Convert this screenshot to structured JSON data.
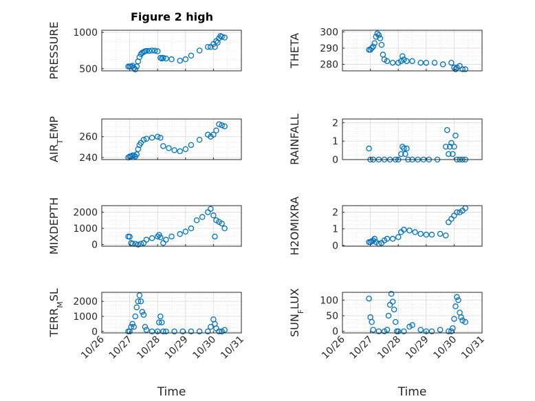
{
  "figure": {
    "title": "Figure 2 high",
    "marker_color": "#0072BD",
    "xlabel": "Time",
    "x_ticks": [
      "10/26",
      "10/27",
      "10/28",
      "10/29",
      "10/30",
      "10/31"
    ]
  },
  "chart_data": [
    {
      "type": "scatter",
      "title": "Figure 2 high",
      "ylabel": "PRESSURE",
      "yticks": [
        "500",
        "1000"
      ],
      "ylim": [
        470,
        1030
      ],
      "xlim": [
        0,
        5
      ],
      "grid": true,
      "x": [
        0.95,
        1.0,
        1.05,
        1.1,
        1.15,
        1.2,
        1.25,
        1.3,
        1.35,
        1.4,
        1.45,
        1.5,
        1.55,
        1.6,
        1.7,
        1.8,
        1.9,
        2.0,
        2.1,
        2.15,
        2.2,
        2.3,
        2.5,
        2.8,
        3.0,
        3.2,
        3.5,
        3.8,
        3.9,
        4.0,
        4.05,
        4.1,
        4.15,
        4.2,
        4.25,
        4.3,
        4.4
      ],
      "y": [
        530,
        530,
        530,
        540,
        510,
        490,
        530,
        600,
        660,
        700,
        720,
        730,
        740,
        745,
        745,
        750,
        748,
        740,
        650,
        640,
        650,
        640,
        630,
        610,
        630,
        680,
        750,
        800,
        800,
        840,
        800,
        880,
        860,
        920,
        950,
        940,
        930
      ]
    },
    {
      "type": "scatter",
      "ylabel": "THETA",
      "yticks": [
        "280",
        "290",
        "300"
      ],
      "ylim": [
        276,
        301
      ],
      "xlim": [
        0,
        5
      ],
      "grid": true,
      "x": [
        0.95,
        1.0,
        1.05,
        1.1,
        1.15,
        1.2,
        1.25,
        1.3,
        1.35,
        1.4,
        1.45,
        1.5,
        1.6,
        1.8,
        2.0,
        2.1,
        2.15,
        2.2,
        2.3,
        2.5,
        2.8,
        3.0,
        3.3,
        3.6,
        3.9,
        4.0,
        4.05,
        4.1,
        4.2,
        4.3,
        4.4
      ],
      "y": [
        289,
        289,
        290,
        291,
        293,
        297,
        299,
        298,
        296,
        292,
        286,
        283,
        282,
        281,
        281,
        282,
        285,
        283,
        282,
        282,
        281,
        281,
        281,
        280,
        281,
        278,
        277,
        278,
        279,
        277,
        277
      ]
    },
    {
      "type": "scatter",
      "ylabel": "AIR_TEMP",
      "yticks": [
        "240",
        "260"
      ],
      "ylim": [
        238,
        277
      ],
      "xlim": [
        0,
        5
      ],
      "grid": true,
      "x": [
        0.95,
        1.0,
        1.05,
        1.1,
        1.15,
        1.2,
        1.25,
        1.3,
        1.35,
        1.4,
        1.5,
        1.6,
        1.8,
        2.0,
        2.1,
        2.2,
        2.4,
        2.6,
        2.8,
        3.0,
        3.2,
        3.5,
        3.8,
        3.9,
        4.0,
        4.1,
        4.2,
        4.3,
        4.4
      ],
      "y": [
        240,
        241,
        241,
        242,
        242,
        241,
        243,
        248,
        252,
        254,
        257,
        258,
        259,
        260,
        259,
        251,
        249,
        247,
        246,
        248,
        252,
        257,
        262,
        260,
        262,
        266,
        272,
        271,
        270
      ]
    },
    {
      "type": "scatter",
      "ylabel": "RAINFALL",
      "yticks": [
        "0",
        "1",
        "2"
      ],
      "ylim": [
        0,
        2.2
      ],
      "xlim": [
        0,
        5
      ],
      "grid": true,
      "x": [
        0.95,
        1.0,
        1.1,
        1.3,
        1.5,
        1.7,
        1.9,
        2.0,
        2.1,
        2.15,
        2.2,
        2.25,
        2.3,
        2.35,
        2.5,
        2.7,
        2.9,
        3.1,
        3.4,
        3.7,
        3.75,
        3.8,
        3.85,
        3.9,
        3.95,
        4.0,
        4.05,
        4.1,
        4.2,
        4.3,
        4.4
      ],
      "y": [
        0.6,
        0,
        0,
        0,
        0,
        0,
        0,
        0,
        0.3,
        0.7,
        0.6,
        0.3,
        0.6,
        0,
        0,
        0,
        0,
        0,
        0,
        0.7,
        1.6,
        0.3,
        0.7,
        0.9,
        0.3,
        0.7,
        1.3,
        0,
        0,
        0,
        0
      ]
    },
    {
      "type": "scatter",
      "ylabel": "MIXDEPTH",
      "yticks": [
        "0",
        "1000",
        "2000"
      ],
      "ylim": [
        -100,
        2400
      ],
      "xlim": [
        0,
        5
      ],
      "grid": true,
      "x": [
        0.95,
        1.0,
        1.05,
        1.1,
        1.2,
        1.3,
        1.4,
        1.5,
        1.6,
        1.8,
        2.0,
        2.05,
        2.1,
        2.2,
        2.3,
        2.5,
        2.8,
        3.0,
        3.2,
        3.4,
        3.6,
        3.8,
        3.9,
        4.0,
        4.05,
        4.1,
        4.2,
        4.3,
        4.4
      ],
      "y": [
        500,
        480,
        100,
        50,
        50,
        0,
        50,
        100,
        300,
        400,
        500,
        600,
        450,
        100,
        300,
        500,
        650,
        800,
        1000,
        1500,
        1700,
        2000,
        2200,
        1800,
        500,
        1500,
        1400,
        1300,
        1000
      ]
    },
    {
      "type": "scatter",
      "ylabel": "H2OMIXRA",
      "yticks": [
        "0",
        "1",
        "2"
      ],
      "ylim": [
        -0.05,
        2.4
      ],
      "xlim": [
        0,
        5
      ],
      "grid": true,
      "x": [
        0.95,
        1.0,
        1.05,
        1.1,
        1.15,
        1.2,
        1.3,
        1.4,
        1.5,
        1.6,
        1.8,
        2.0,
        2.1,
        2.2,
        2.4,
        2.6,
        2.8,
        3.0,
        3.2,
        3.5,
        3.7,
        3.8,
        3.9,
        4.0,
        4.1,
        4.2,
        4.3,
        4.4
      ],
      "y": [
        0.2,
        0.2,
        0.25,
        0.3,
        0.4,
        0.2,
        0.1,
        0.15,
        0.3,
        0.4,
        0.4,
        0.5,
        0.8,
        0.95,
        0.9,
        0.8,
        0.7,
        0.65,
        0.65,
        0.7,
        0.6,
        1.4,
        1.6,
        1.8,
        2.0,
        2.0,
        2.1,
        2.25
      ]
    },
    {
      "type": "scatter",
      "ylabel": "TERR_MSL",
      "yticks": [
        "0",
        "1000",
        "2000"
      ],
      "ylim": [
        -100,
        2600
      ],
      "xlim": [
        0,
        5
      ],
      "grid": true,
      "x": [
        0.95,
        1.0,
        1.05,
        1.1,
        1.15,
        1.2,
        1.25,
        1.3,
        1.35,
        1.4,
        1.45,
        1.5,
        1.55,
        1.6,
        1.8,
        2.0,
        2.05,
        2.1,
        2.15,
        2.2,
        2.3,
        2.6,
        2.9,
        3.2,
        3.5,
        3.8,
        3.9,
        4.0,
        4.05,
        4.1,
        4.2,
        4.3,
        4.4
      ],
      "y": [
        0,
        0,
        300,
        500,
        300,
        1000,
        1600,
        2000,
        2400,
        2000,
        1300,
        1100,
        300,
        100,
        0,
        0,
        600,
        1000,
        600,
        0,
        0,
        0,
        0,
        0,
        0,
        0,
        300,
        800,
        500,
        200,
        0,
        0,
        100
      ]
    },
    {
      "type": "scatter",
      "ylabel": "SUN_FLUX",
      "yticks": [
        "0",
        "50",
        "100"
      ],
      "ylim": [
        -5,
        125
      ],
      "xlim": [
        0,
        5
      ],
      "grid": true,
      "x": [
        0.95,
        1.0,
        1.05,
        1.1,
        1.3,
        1.5,
        1.6,
        1.65,
        1.7,
        1.75,
        1.8,
        1.85,
        1.9,
        1.95,
        2.0,
        2.2,
        2.4,
        2.5,
        2.8,
        3.0,
        3.2,
        3.5,
        3.8,
        3.9,
        3.95,
        4.0,
        4.05,
        4.1,
        4.15,
        4.2,
        4.25,
        4.3,
        4.4
      ],
      "y": [
        105,
        45,
        30,
        5,
        0,
        0,
        5,
        50,
        85,
        120,
        95,
        70,
        30,
        0,
        0,
        0,
        15,
        20,
        5,
        0,
        0,
        5,
        0,
        0,
        10,
        40,
        80,
        110,
        100,
        60,
        45,
        35,
        30
      ]
    }
  ]
}
